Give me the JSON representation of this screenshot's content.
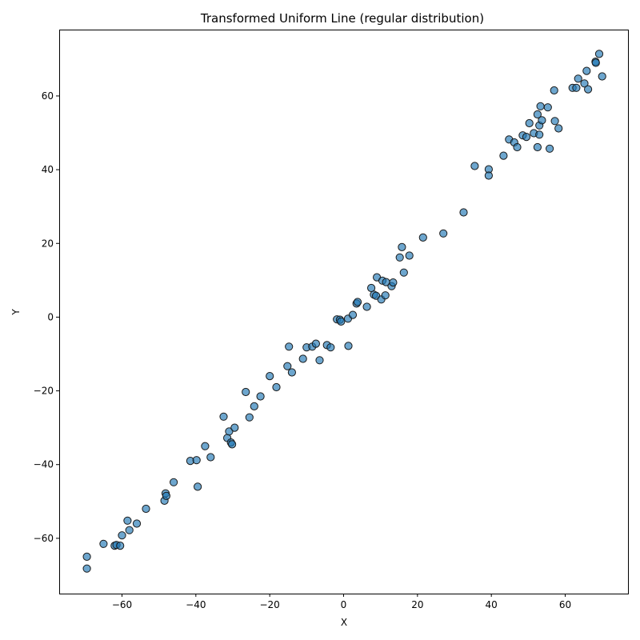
{
  "chart_data": {
    "type": "scatter",
    "title": "Transformed Uniform Line  (regular distribution)",
    "xlabel": "X",
    "ylabel": "Y",
    "xlim": [
      -77,
      77
    ],
    "ylim": [
      -75,
      78
    ],
    "xticks": [
      -60,
      -40,
      -20,
      0,
      20,
      40,
      60
    ],
    "yticks": [
      -60,
      -40,
      -20,
      0,
      20,
      40,
      60
    ],
    "grid": false,
    "marker_color": "#1f77b4",
    "edge_color": "#1a1a1a",
    "points": [
      {
        "x": -69.5,
        "y": -65.0
      },
      {
        "x": -69.5,
        "y": -68.2
      },
      {
        "x": -65.0,
        "y": -61.5
      },
      {
        "x": -62.0,
        "y": -62.0
      },
      {
        "x": -61.5,
        "y": -61.8
      },
      {
        "x": -60.5,
        "y": -62.0
      },
      {
        "x": -60.0,
        "y": -59.2
      },
      {
        "x": -58.5,
        "y": -55.2
      },
      {
        "x": -58.0,
        "y": -57.8
      },
      {
        "x": -56.0,
        "y": -56.0
      },
      {
        "x": -53.5,
        "y": -52.0
      },
      {
        "x": -48.5,
        "y": -49.8
      },
      {
        "x": -48.2,
        "y": -47.8
      },
      {
        "x": -48.0,
        "y": -48.5
      },
      {
        "x": -46.0,
        "y": -44.8
      },
      {
        "x": -41.5,
        "y": -39.0
      },
      {
        "x": -39.8,
        "y": -38.8
      },
      {
        "x": -39.5,
        "y": -46.0
      },
      {
        "x": -37.5,
        "y": -35.0
      },
      {
        "x": -36.0,
        "y": -38.0
      },
      {
        "x": -32.5,
        "y": -27.0
      },
      {
        "x": -31.5,
        "y": -32.8
      },
      {
        "x": -31.0,
        "y": -31.0
      },
      {
        "x": -30.5,
        "y": -34.0
      },
      {
        "x": -30.2,
        "y": -34.5
      },
      {
        "x": -29.5,
        "y": -30.0
      },
      {
        "x": -26.5,
        "y": -20.3
      },
      {
        "x": -25.5,
        "y": -27.2
      },
      {
        "x": -24.2,
        "y": -24.2
      },
      {
        "x": -22.5,
        "y": -21.5
      },
      {
        "x": -20.0,
        "y": -16.0
      },
      {
        "x": -18.2,
        "y": -19.0
      },
      {
        "x": -15.2,
        "y": -13.3
      },
      {
        "x": -14.8,
        "y": -8.0
      },
      {
        "x": -14.0,
        "y": -15.0
      },
      {
        "x": -11.0,
        "y": -11.3
      },
      {
        "x": -10.0,
        "y": -8.2
      },
      {
        "x": -8.5,
        "y": -8.0
      },
      {
        "x": -7.5,
        "y": -7.2
      },
      {
        "x": -6.5,
        "y": -11.7
      },
      {
        "x": -4.5,
        "y": -7.6
      },
      {
        "x": -3.5,
        "y": -8.2
      },
      {
        "x": -1.8,
        "y": -0.6
      },
      {
        "x": -1.0,
        "y": -0.7
      },
      {
        "x": -0.7,
        "y": -1.2
      },
      {
        "x": 1.2,
        "y": -0.4
      },
      {
        "x": 1.3,
        "y": -7.8
      },
      {
        "x": 2.5,
        "y": 0.6
      },
      {
        "x": 3.5,
        "y": 3.7
      },
      {
        "x": 3.8,
        "y": 4.1
      },
      {
        "x": 6.3,
        "y": 2.8
      },
      {
        "x": 7.5,
        "y": 7.9
      },
      {
        "x": 8.2,
        "y": 6.1
      },
      {
        "x": 8.8,
        "y": 5.8
      },
      {
        "x": 9.0,
        "y": 10.8
      },
      {
        "x": 10.2,
        "y": 4.8
      },
      {
        "x": 10.5,
        "y": 9.9
      },
      {
        "x": 11.3,
        "y": 5.9
      },
      {
        "x": 11.5,
        "y": 9.5
      },
      {
        "x": 13.0,
        "y": 8.4
      },
      {
        "x": 13.4,
        "y": 9.4
      },
      {
        "x": 15.2,
        "y": 16.2
      },
      {
        "x": 15.8,
        "y": 19.0
      },
      {
        "x": 16.3,
        "y": 12.1
      },
      {
        "x": 17.8,
        "y": 16.7
      },
      {
        "x": 21.5,
        "y": 21.6
      },
      {
        "x": 27.0,
        "y": 22.7
      },
      {
        "x": 32.5,
        "y": 28.4
      },
      {
        "x": 35.5,
        "y": 41.0
      },
      {
        "x": 39.3,
        "y": 40.1
      },
      {
        "x": 39.3,
        "y": 38.4
      },
      {
        "x": 43.3,
        "y": 43.8
      },
      {
        "x": 44.8,
        "y": 48.2
      },
      {
        "x": 46.2,
        "y": 47.4
      },
      {
        "x": 47.0,
        "y": 46.1
      },
      {
        "x": 48.5,
        "y": 49.3
      },
      {
        "x": 49.5,
        "y": 48.9
      },
      {
        "x": 50.3,
        "y": 52.6
      },
      {
        "x": 51.5,
        "y": 49.9
      },
      {
        "x": 52.5,
        "y": 46.1
      },
      {
        "x": 52.5,
        "y": 55.0
      },
      {
        "x": 53.0,
        "y": 52.0
      },
      {
        "x": 53.0,
        "y": 49.5
      },
      {
        "x": 53.3,
        "y": 57.2
      },
      {
        "x": 53.7,
        "y": 53.4
      },
      {
        "x": 55.3,
        "y": 56.9
      },
      {
        "x": 55.8,
        "y": 45.7
      },
      {
        "x": 57.0,
        "y": 61.5
      },
      {
        "x": 57.2,
        "y": 53.2
      },
      {
        "x": 58.2,
        "y": 51.2
      },
      {
        "x": 62.0,
        "y": 62.2
      },
      {
        "x": 63.0,
        "y": 62.2
      },
      {
        "x": 63.5,
        "y": 64.7
      },
      {
        "x": 65.2,
        "y": 63.4
      },
      {
        "x": 65.8,
        "y": 66.8
      },
      {
        "x": 66.2,
        "y": 61.8
      },
      {
        "x": 68.2,
        "y": 69.3
      },
      {
        "x": 68.3,
        "y": 69.0
      },
      {
        "x": 69.2,
        "y": 71.4
      },
      {
        "x": 70.0,
        "y": 65.3
      }
    ]
  }
}
